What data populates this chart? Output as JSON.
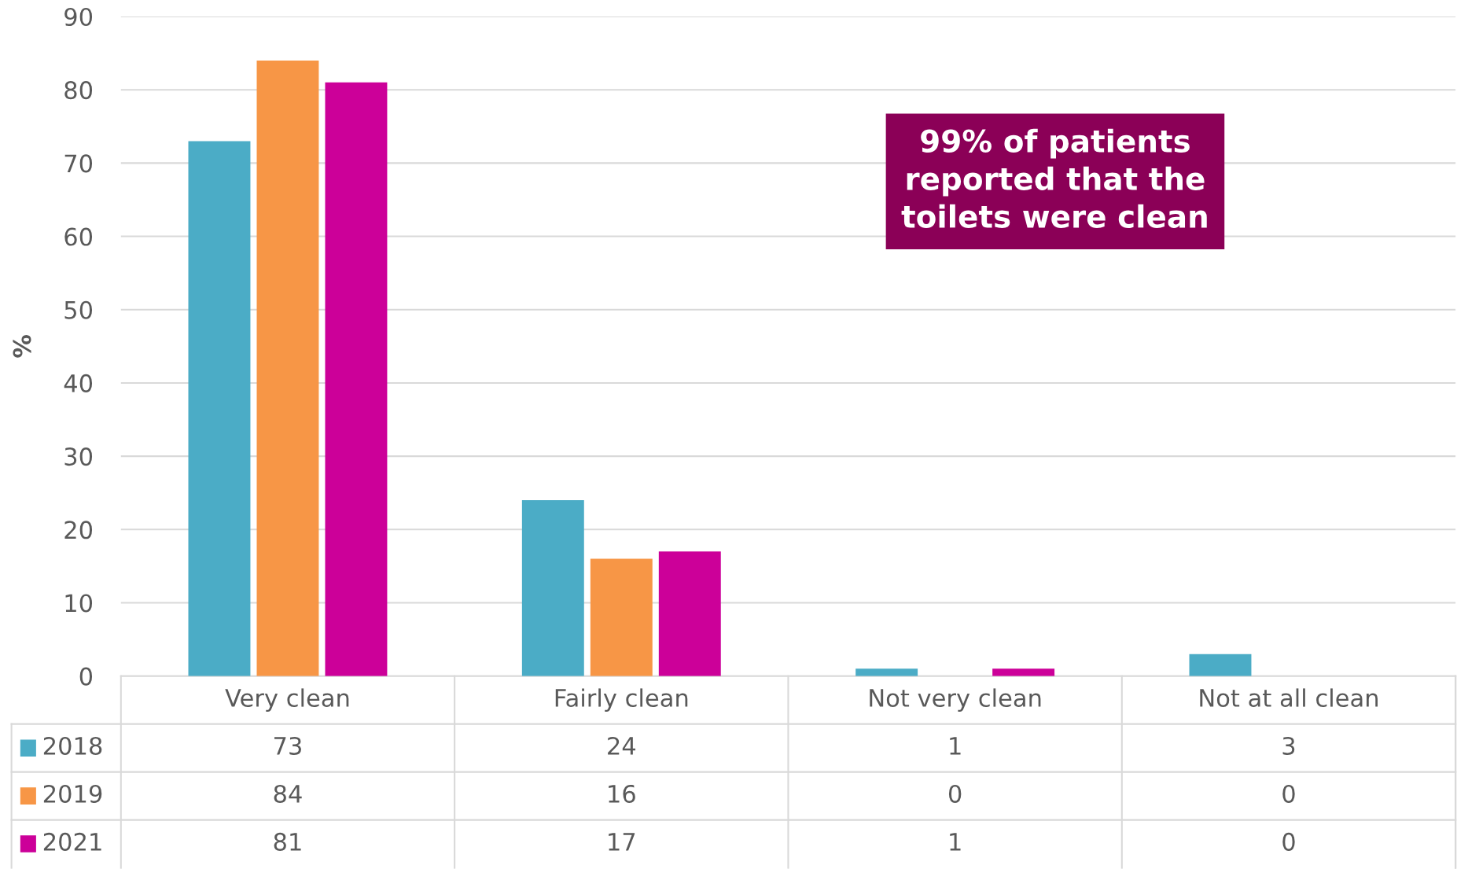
{
  "chart_data": {
    "type": "bar",
    "ylabel": "%",
    "categories": [
      "Very clean",
      "Fairly clean",
      "Not very clean",
      "Not at all clean"
    ],
    "series": [
      {
        "name": "2018",
        "color": "#4bacc6",
        "values": [
          73,
          24,
          1,
          3
        ]
      },
      {
        "name": "2019",
        "color": "#f79646",
        "values": [
          84,
          16,
          0,
          0
        ]
      },
      {
        "name": "2021",
        "color": "#cc0099",
        "values": [
          81,
          17,
          1,
          0
        ]
      }
    ],
    "ylim": [
      0,
      90
    ],
    "yticks": [
      0,
      10,
      20,
      30,
      40,
      50,
      60,
      70,
      80,
      90
    ],
    "grid": "y",
    "legend": "bottom",
    "data_labels": true,
    "annotations": [
      "99% of patients\nreported that the\ntoilets were clean"
    ]
  }
}
